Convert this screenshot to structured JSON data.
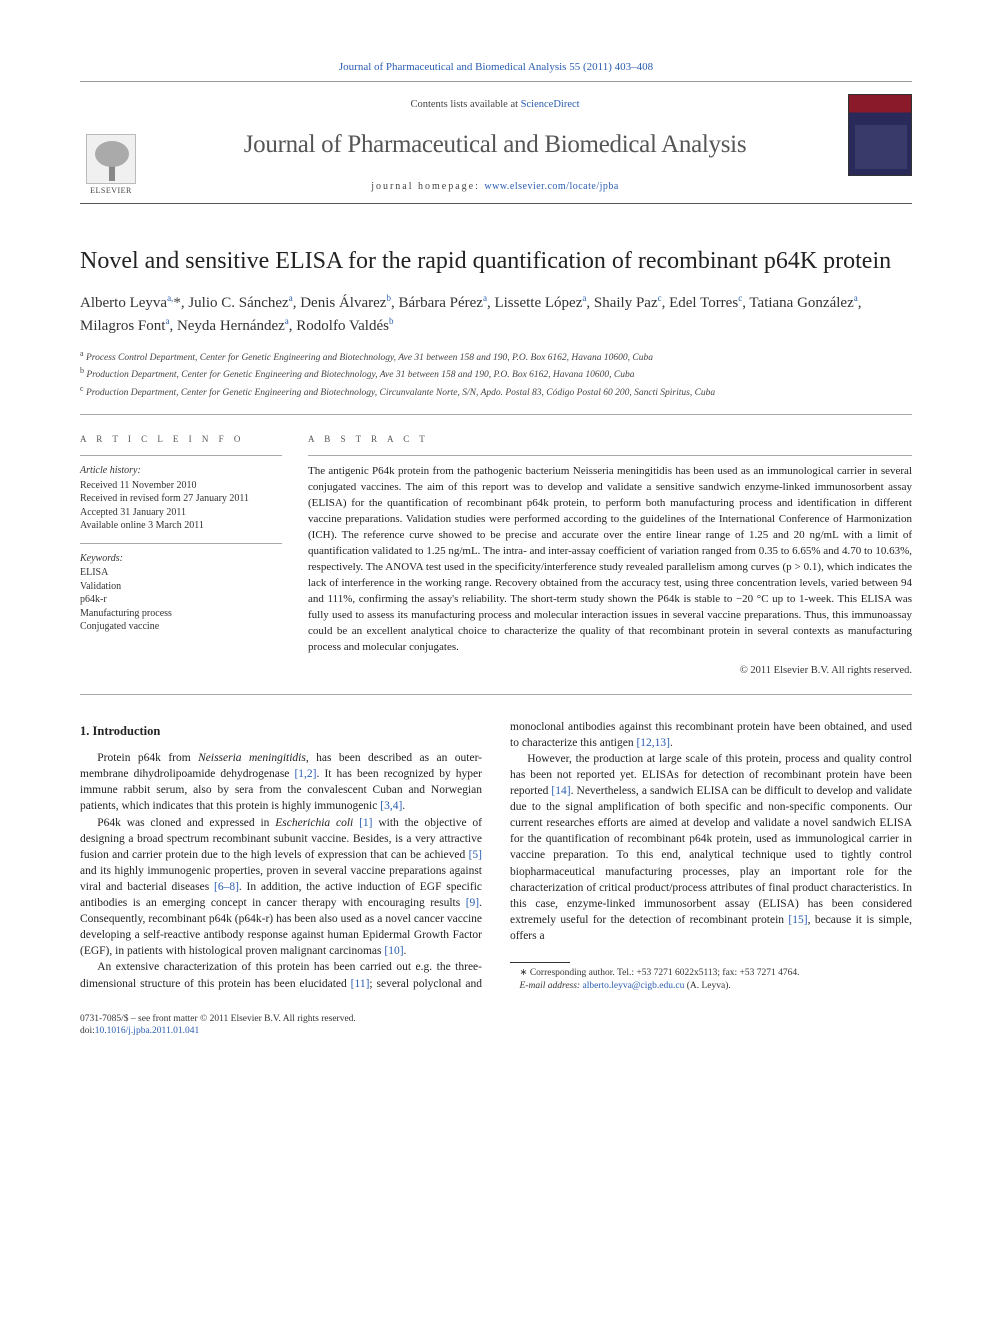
{
  "top_citation": "Journal of Pharmaceutical and Biomedical Analysis 55 (2011) 403–408",
  "masthead": {
    "contents_prefix": "Contents lists available at ",
    "contents_link": "ScienceDirect",
    "journal_name": "Journal of Pharmaceutical and Biomedical Analysis",
    "homepage_prefix": "journal homepage: ",
    "homepage_url": "www.elsevier.com/locate/jpba",
    "publisher_word": "ELSEVIER"
  },
  "title": "Novel and sensitive ELISA for the rapid quantification of recombinant p64K protein",
  "authors_html": "Alberto Leyva<sup>a,</sup><span class='star'>*</span>, Julio C. Sánchez<sup>a</sup>, Denis Álvarez<sup>b</sup>, Bárbara Pérez<sup>a</sup>, Lissette López<sup>a</sup>, Shaily Paz<sup>c</sup>, Edel Torres<sup>c</sup>, Tatiana González<sup>a</sup>, Milagros Font<sup>a</sup>, Neyda Hernández<sup>a</sup>, Rodolfo Valdés<sup>b</sup>",
  "affiliations": {
    "a": "Process Control Department, Center for Genetic Engineering and Biotechnology, Ave 31 between 158 and 190, P.O. Box 6162, Havana 10600, Cuba",
    "b": "Production Department, Center for Genetic Engineering and Biotechnology, Ave 31 between 158 and 190, P.O. Box 6162, Havana 10600, Cuba",
    "c": "Production Department, Center for Genetic Engineering and Biotechnology, Circunvalante Norte, S/N, Apdo. Postal 83, Código Postal 60 200, Sancti Spiritus, Cuba"
  },
  "article_info_label": "a r t i c l e   i n f o",
  "abstract_label": "a b s t r a c t",
  "history": {
    "head": "Article history:",
    "received": "Received 11 November 2010",
    "revised": "Received in revised form 27 January 2011",
    "accepted": "Accepted 31 January 2011",
    "online": "Available online 3 March 2011"
  },
  "keywords": {
    "head": "Keywords:",
    "items": [
      "ELISA",
      "Validation",
      "p64k-r",
      "Manufacturing process",
      "Conjugated vaccine"
    ]
  },
  "abstract_text": "The antigenic P64k protein from the pathogenic bacterium Neisseria meningitidis has been used as an immunological carrier in several conjugated vaccines. The aim of this report was to develop and validate a sensitive sandwich enzyme-linked immunosorbent assay (ELISA) for the quantification of recombinant p64k protein, to perform both manufacturing process and identification in different vaccine preparations. Validation studies were performed according to the guidelines of the International Conference of Harmonization (ICH). The reference curve showed to be precise and accurate over the entire linear range of 1.25 and 20 ng/mL with a limit of quantification validated to 1.25 ng/mL. The intra- and inter-assay coefficient of variation ranged from 0.35 to 6.65% and 4.70 to 10.63%, respectively. The ANOVA test used in the specificity/interference study revealed parallelism among curves (p > 0.1), which indicates the lack of interference in the working range. Recovery obtained from the accuracy test, using three concentration levels, varied between 94 and 111%, confirming the assay's reliability. The short-term study shown the P64k is stable to −20 °C up to 1-week. This ELISA was fully used to assess its manufacturing process and molecular interaction issues in several vaccine preparations. Thus, this immunoassay could be an excellent analytical choice to characterize the quality of that recombinant protein in several contexts as manufacturing process and molecular conjugates.",
  "abstract_copyright": "© 2011 Elsevier B.V. All rights reserved.",
  "section_heading": "1.  Introduction",
  "paragraphs": {
    "p1_a": "Protein p64k from ",
    "p1_em1": "Neisseria meningitidis",
    "p1_b": ", has been described as an outer-membrane dihydrolipoamide dehydrogenase ",
    "p1_ref1": "[1,2]",
    "p1_c": ". It has been recognized by hyper immune rabbit serum, also by sera from the convalescent Cuban and Norwegian patients, which indicates that this protein is highly immunogenic ",
    "p1_ref2": "[3,4]",
    "p1_d": ".",
    "p2_a": "P64k was cloned and expressed in ",
    "p2_em1": "Escherichia coli",
    "p2_b": " ",
    "p2_ref1": "[1]",
    "p2_c": " with the objective of designing a broad spectrum recombinant subunit vaccine. Besides, is a very attractive fusion and carrier protein due to the high levels of expression that can be achieved ",
    "p2_ref2": "[5]",
    "p2_d": " and its highly immunogenic properties, proven in several vaccine preparations against viral and bacterial diseases ",
    "p2_ref3": "[6–8]",
    "p2_e": ". In addition, the active induction of EGF specific antibodies is an emerging concept in cancer therapy with encouraging results ",
    "p2_ref4": "[9]",
    "p2_f": ". Consequently, recombinant p64k (p64k-r) has been also used as a novel cancer vaccine developing a self-reactive antibody response against human Epidermal Growth Factor (EGF), in patients with histological proven malignant carcinomas ",
    "p2_ref5": "[10]",
    "p2_g": ".",
    "p3_a": "An extensive characterization of this protein has been carried out e.g. the three-dimensional structure of this protein has been elucidated ",
    "p3_ref1": "[11]",
    "p3_b": "; several polyclonal and monoclonal antibodies against this recombinant protein have been obtained, and used to characterize this antigen ",
    "p3_ref2": "[12,13]",
    "p3_c": ".",
    "p4_a": "However, the production at large scale of this protein, process and quality control has been not reported yet. ELISAs for detection of recombinant protein have been reported ",
    "p4_ref1": "[14]",
    "p4_b": ". Nevertheless, a sandwich ELISA can be difficult to develop and validate due to the signal amplification of both specific and non-specific components. Our current researches efforts are aimed at develop and validate a novel sandwich ELISA for the quantification of recombinant p64k protein, used as immunological carrier in vaccine preparation. To this end, analytical technique used to tightly control biopharmaceutical manufacturing processes, play an important role for the characterization of critical product/process attributes of final product characteristics. In this case, enzyme-linked immunosorbent assay (ELISA) has been considered extremely useful for the detection of recombinant protein ",
    "p4_ref2": "[15]",
    "p4_c": ", because it is simple, offers a"
  },
  "footnote": {
    "star": "∗",
    "line1": " Corresponding author. Tel.: +53 7271 6022x5113; fax: +53 7271 4764.",
    "email_label": "E-mail address: ",
    "email": "alberto.leyva@cigb.edu.cu",
    "email_tail": " (A. Leyva)."
  },
  "footer": {
    "issn_line": "0731-7085/$ – see front matter © 2011 Elsevier B.V. All rights reserved.",
    "doi_label": "doi:",
    "doi": "10.1016/j.jpba.2011.01.041"
  },
  "colors": {
    "link": "#2a5db0",
    "text": "#222222",
    "muted": "#555555",
    "rule": "#aaaaaa"
  }
}
